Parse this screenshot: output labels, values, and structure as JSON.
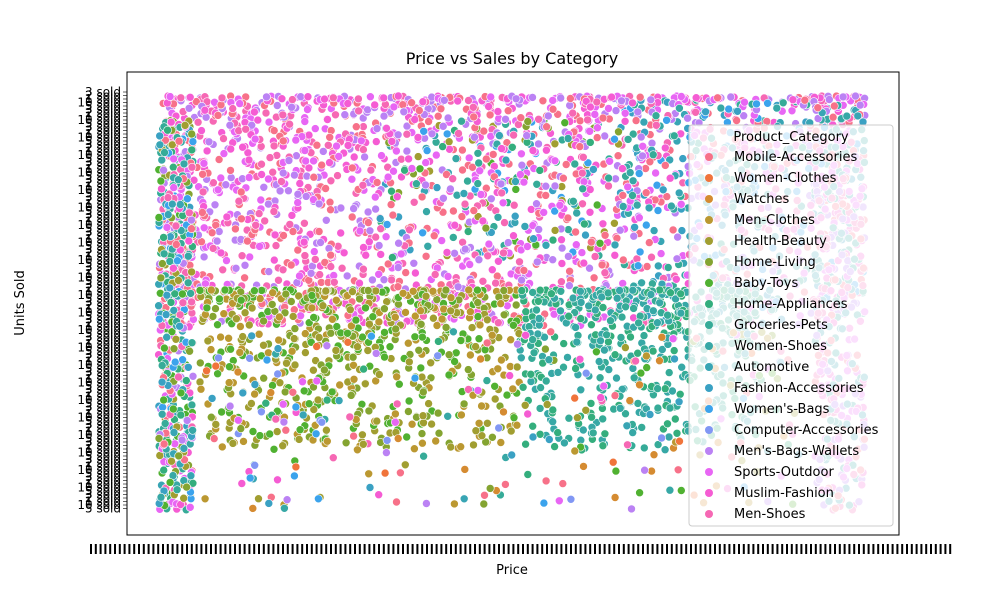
{
  "chart_data": {
    "type": "scatter",
    "title": "Price vs Sales by Category",
    "xlabel": "Price",
    "ylabel": "Units Sold",
    "grid": false,
    "legend": {
      "title": "Product_Category",
      "placement": "right",
      "entries": [
        {
          "name": "Mobile-Accessories",
          "color": "#f77189"
        },
        {
          "name": "Women-Clothes",
          "color": "#f0743b"
        },
        {
          "name": "Watches",
          "color": "#d58b31"
        },
        {
          "name": "Men-Clothes",
          "color": "#bb9831"
        },
        {
          "name": "Health-Beauty",
          "color": "#a19e31"
        },
        {
          "name": "Home-Living",
          "color": "#84a431"
        },
        {
          "name": "Baby-Toys",
          "color": "#50b131"
        },
        {
          "name": "Home-Appliances",
          "color": "#34ae7d"
        },
        {
          "name": "Groceries-Pets",
          "color": "#36ab98"
        },
        {
          "name": "Women-Shoes",
          "color": "#37a8a6"
        },
        {
          "name": "Automotive",
          "color": "#38a5b4"
        },
        {
          "name": "Fashion-Accessories",
          "color": "#3aa1c3"
        },
        {
          "name": "Women's-Bags",
          "color": "#3ba3ec"
        },
        {
          "name": "Computer-Accessories",
          "color": "#8197f4"
        },
        {
          "name": "Men's-Bags-Wallets",
          "color": "#bb82f4"
        },
        {
          "name": "Sports-Outdoor",
          "color": "#e866f4"
        },
        {
          "name": "Muslim-Fashion",
          "color": "#f55cd3"
        },
        {
          "name": "Men-Shoes",
          "color": "#f668b4"
        }
      ]
    },
    "tick_labels": {
      "x": [
        "",
        "",
        "",
        "",
        "",
        "",
        "",
        "",
        "",
        "",
        "",
        "",
        "",
        "",
        "",
        "",
        "",
        "",
        "",
        ""
      ],
      "y": [
        "3 sold",
        "2 sold",
        "1 sold",
        "10 sold",
        "5 sold"
      ]
    }
  }
}
